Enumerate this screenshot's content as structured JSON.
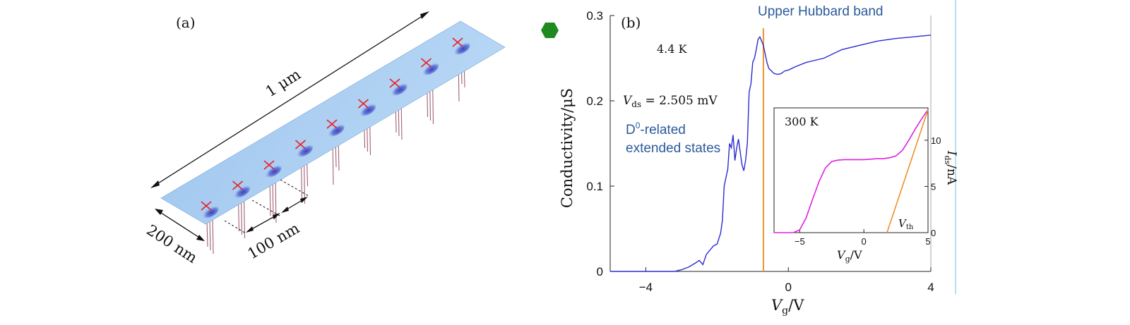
{
  "panel_a": {
    "label": "(a)",
    "length_label": "1 μm",
    "width_label": "200 nm",
    "spacing_label": "100 nm",
    "dopant_count": 9,
    "colors": {
      "surface": "#a9cdf0",
      "surface_dark": "#6fa2de",
      "marker": "#e8202a",
      "probe": "#a06076"
    }
  },
  "marker_icon": {
    "icon": "hexagon-icon",
    "color": "#1f8a1f"
  },
  "chart_data": [
    {
      "type": "line",
      "panel_label": "(b)",
      "title": "",
      "xlabel_main": "V",
      "xlabel_sub": "g",
      "xlabel_unit": "/V",
      "ylabel": "Conductivity/μS",
      "xlim": [
        -5,
        4
      ],
      "ylim": [
        0,
        0.3
      ],
      "xticks": [
        -4,
        0,
        4
      ],
      "xtick_labels": [
        "−4",
        "0",
        "4"
      ],
      "yticks": [
        0,
        0.1,
        0.2,
        0.3
      ],
      "ytick_labels": [
        "0",
        "0.1",
        "0.2",
        "0.3"
      ],
      "grid": false,
      "annotations": {
        "temperature": "4.4 K",
        "vds_main": "V",
        "vds_sub": "ds",
        "vds_value": " = 2.505 mV",
        "upper_hubbard": "Upper Hubbard band",
        "d0_line1_main": "D",
        "d0_line1_sup": "0",
        "d0_line1_rest": "-related",
        "d0_line2": "extended states"
      },
      "vertical_line_x": -0.7,
      "series": [
        {
          "color": "#2b2bd0",
          "x": [
            -5,
            -3.2,
            -3.0,
            -2.8,
            -2.6,
            -2.5,
            -2.4,
            -2.3,
            -2.2,
            -2.1,
            -2.0,
            -1.9,
            -1.85,
            -1.8,
            -1.75,
            -1.7,
            -1.65,
            -1.6,
            -1.55,
            -1.5,
            -1.45,
            -1.4,
            -1.35,
            -1.3,
            -1.25,
            -1.2,
            -1.15,
            -1.1,
            -1.05,
            -1.0,
            -0.95,
            -0.9,
            -0.85,
            -0.8,
            -0.75,
            -0.7,
            -0.65,
            -0.6,
            -0.55,
            -0.5,
            -0.4,
            -0.3,
            -0.2,
            -0.1,
            0,
            0.2,
            0.5,
            1.0,
            1.5,
            2.0,
            2.5,
            3.0,
            3.5,
            4.0
          ],
          "y": [
            0,
            0,
            0.002,
            0.005,
            0.01,
            0.013,
            0.008,
            0.02,
            0.025,
            0.03,
            0.032,
            0.045,
            0.06,
            0.1,
            0.11,
            0.12,
            0.15,
            0.145,
            0.16,
            0.13,
            0.145,
            0.155,
            0.14,
            0.125,
            0.118,
            0.13,
            0.15,
            0.21,
            0.22,
            0.245,
            0.25,
            0.26,
            0.272,
            0.275,
            0.27,
            0.265,
            0.255,
            0.245,
            0.238,
            0.236,
            0.232,
            0.231,
            0.232,
            0.235,
            0.236,
            0.24,
            0.245,
            0.25,
            0.26,
            0.265,
            0.27,
            0.273,
            0.275,
            0.277
          ]
        }
      ]
    },
    {
      "type": "line",
      "title": "",
      "inset_label": "300 K",
      "xlabel_main": "V",
      "xlabel_sub": "g",
      "xlabel_unit": "/V",
      "ylabel_main": "I",
      "ylabel_sub": "ds",
      "ylabel_unit": "/nA",
      "xlim": [
        -7,
        5
      ],
      "ylim": [
        0,
        13.5
      ],
      "xticks": [
        -5,
        0,
        5
      ],
      "xtick_labels": [
        "−5",
        "0",
        "5"
      ],
      "yticks": [
        0,
        5,
        10
      ],
      "ytick_labels": [
        "0",
        "5",
        "10"
      ],
      "threshold_label_main": "V",
      "threshold_label_sub": "th",
      "series": [
        {
          "color": "#e020e0",
          "x": [
            -7,
            -5.5,
            -5.0,
            -4.5,
            -4.0,
            -3.5,
            -3.0,
            -2.5,
            -2.0,
            -1.5,
            -1.0,
            -0.5,
            0,
            0.5,
            1.0,
            1.5,
            2.0,
            2.5,
            3.0,
            3.5,
            4.0,
            4.5,
            5.0
          ],
          "y": [
            0,
            0,
            0.3,
            1.6,
            3.6,
            5.5,
            7.0,
            7.7,
            7.85,
            7.9,
            7.9,
            7.9,
            7.9,
            7.95,
            8.0,
            8.0,
            8.1,
            8.3,
            8.9,
            10.0,
            11.2,
            12.3,
            13.3
          ]
        },
        {
          "color": "#f0902a",
          "x": [
            1.8,
            5.0
          ],
          "y": [
            0,
            13.3
          ]
        }
      ]
    }
  ]
}
